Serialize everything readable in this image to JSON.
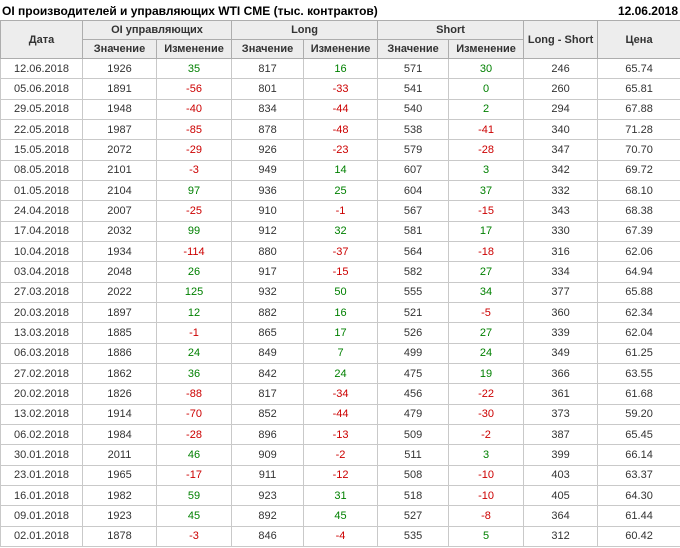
{
  "header": {
    "title": "OI производителей и управляющих WTI CME (тыс. контрактов)",
    "report_date": "12.06.2018"
  },
  "colors": {
    "positive_change": "#008000",
    "negative_change": "#cc0000",
    "header_bg": "#ededed",
    "text": "#333333"
  },
  "chart_data": {
    "type": "table",
    "title": "OI производителей и управляющих WTI CME (тыс. контрактов)",
    "column_groups": [
      {
        "label": "Дата",
        "span": 1
      },
      {
        "label": "OI управляющих",
        "span": 2
      },
      {
        "label": "Long",
        "span": 2
      },
      {
        "label": "Short",
        "span": 2
      },
      {
        "label": "Long - Short",
        "span": 1
      },
      {
        "label": "Цена",
        "span": 1
      }
    ],
    "sub_headers": [
      "Значение",
      "Изменение",
      "Значение",
      "Изменение",
      "Значение",
      "Изменение"
    ],
    "change_column_indices": [
      2,
      4,
      6
    ],
    "rows": [
      [
        "12.06.2018",
        1926,
        35,
        817,
        16,
        571,
        30,
        246,
        "65.74"
      ],
      [
        "05.06.2018",
        1891,
        -56,
        801,
        -33,
        541,
        0,
        260,
        "65.81"
      ],
      [
        "29.05.2018",
        1948,
        -40,
        834,
        -44,
        540,
        2,
        294,
        "67.88"
      ],
      [
        "22.05.2018",
        1987,
        -85,
        878,
        -48,
        538,
        -41,
        340,
        "71.28"
      ],
      [
        "15.05.2018",
        2072,
        -29,
        926,
        -23,
        579,
        -28,
        347,
        "70.70"
      ],
      [
        "08.05.2018",
        2101,
        -3,
        949,
        14,
        607,
        3,
        342,
        "69.72"
      ],
      [
        "01.05.2018",
        2104,
        97,
        936,
        25,
        604,
        37,
        332,
        "68.10"
      ],
      [
        "24.04.2018",
        2007,
        -25,
        910,
        -1,
        567,
        -15,
        343,
        "68.38"
      ],
      [
        "17.04.2018",
        2032,
        99,
        912,
        32,
        581,
        17,
        330,
        "67.39"
      ],
      [
        "10.04.2018",
        1934,
        -114,
        880,
        -37,
        564,
        -18,
        316,
        "62.06"
      ],
      [
        "03.04.2018",
        2048,
        26,
        917,
        -15,
        582,
        27,
        334,
        "64.94"
      ],
      [
        "27.03.2018",
        2022,
        125,
        932,
        50,
        555,
        34,
        377,
        "65.88"
      ],
      [
        "20.03.2018",
        1897,
        12,
        882,
        16,
        521,
        -5,
        360,
        "62.34"
      ],
      [
        "13.03.2018",
        1885,
        -1,
        865,
        17,
        526,
        27,
        339,
        "62.04"
      ],
      [
        "06.03.2018",
        1886,
        24,
        849,
        7,
        499,
        24,
        349,
        "61.25"
      ],
      [
        "27.02.2018",
        1862,
        36,
        842,
        24,
        475,
        19,
        366,
        "63.55"
      ],
      [
        "20.02.2018",
        1826,
        -88,
        817,
        -34,
        456,
        -22,
        361,
        "61.68"
      ],
      [
        "13.02.2018",
        1914,
        -70,
        852,
        -44,
        479,
        -30,
        373,
        "59.20"
      ],
      [
        "06.02.2018",
        1984,
        -28,
        896,
        -13,
        509,
        -2,
        387,
        "65.45"
      ],
      [
        "30.01.2018",
        2011,
        46,
        909,
        -2,
        511,
        3,
        399,
        "66.14"
      ],
      [
        "23.01.2018",
        1965,
        -17,
        911,
        -12,
        508,
        -10,
        403,
        "63.37"
      ],
      [
        "16.01.2018",
        1982,
        59,
        923,
        31,
        518,
        -10,
        405,
        "64.30"
      ],
      [
        "09.01.2018",
        1923,
        45,
        892,
        45,
        527,
        -8,
        364,
        "61.44"
      ],
      [
        "02.01.2018",
        1878,
        -3,
        846,
        -4,
        535,
        5,
        312,
        "60.42"
      ]
    ]
  }
}
